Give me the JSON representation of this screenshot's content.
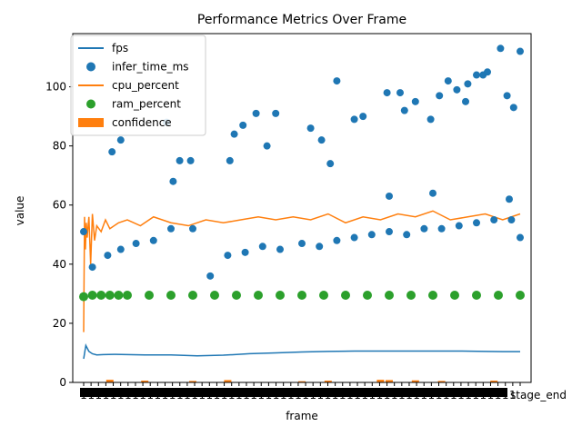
{
  "chart_data": {
    "type": "line",
    "title": "Performance Metrics Over Frame",
    "xlabel": "frame",
    "ylabel": "value",
    "ylim": [
      0,
      118
    ],
    "yticks": [
      0,
      20,
      40,
      60,
      80,
      100
    ],
    "x_range": [
      0,
      1000
    ],
    "x_tick_text": "1",
    "x_last_tick_label": "stage_end",
    "grid": false,
    "legend_position": "upper left",
    "colors": {
      "fps": "#1f77b4",
      "infer_time_ms": "#1f77b4",
      "cpu_percent": "#ff7f0e",
      "ram_percent": "#2ca02c",
      "confidence": "#ff7f0e"
    },
    "series": [
      {
        "name": "fps",
        "kind": "line",
        "x": [
          0,
          5,
          12,
          20,
          30,
          45,
          70,
          100,
          140,
          200,
          260,
          320,
          380,
          440,
          500,
          560,
          620,
          680,
          740,
          800,
          860,
          920,
          960,
          1000
        ],
        "y": [
          8.0,
          12.5,
          10.5,
          9.7,
          9.3,
          9.4,
          9.5,
          9.4,
          9.3,
          9.3,
          9.0,
          9.2,
          9.7,
          10.0,
          10.3,
          10.5,
          10.6,
          10.6,
          10.6,
          10.6,
          10.6,
          10.5,
          10.4,
          10.4
        ]
      },
      {
        "name": "infer_time_ms",
        "kind": "scatter",
        "x": [
          0,
          20,
          55,
          85,
          120,
          160,
          200,
          250,
          290,
          330,
          370,
          410,
          450,
          500,
          540,
          580,
          620,
          660,
          700,
          740,
          780,
          820,
          860,
          900,
          940,
          980,
          1000,
          65,
          85,
          190,
          205,
          220,
          245,
          335,
          345,
          365,
          395,
          420,
          440,
          520,
          545,
          565,
          580,
          620,
          640,
          695,
          725,
          735,
          760,
          795,
          815,
          835,
          855,
          875,
          880,
          900,
          915,
          925,
          955,
          970,
          985,
          1000,
          700,
          800,
          975
        ],
        "y": [
          51,
          39,
          43,
          45,
          47,
          48,
          52,
          52,
          36,
          43,
          44,
          46,
          45,
          47,
          46,
          48,
          49,
          50,
          51,
          50,
          52,
          52,
          53,
          54,
          55,
          55,
          49,
          78,
          82,
          88,
          68,
          75,
          75,
          75,
          84,
          87,
          91,
          80,
          91,
          86,
          82,
          74,
          102,
          89,
          90,
          98,
          98,
          92,
          95,
          89,
          97,
          102,
          99,
          95,
          101,
          104,
          104,
          105,
          113,
          97,
          93,
          112,
          63,
          64,
          62
        ]
      },
      {
        "name": "cpu_percent",
        "kind": "line",
        "x": [
          0,
          2,
          4,
          6,
          8,
          12,
          16,
          20,
          25,
          30,
          40,
          50,
          60,
          80,
          100,
          130,
          160,
          200,
          240,
          280,
          320,
          360,
          400,
          440,
          480,
          520,
          560,
          600,
          640,
          680,
          720,
          760,
          800,
          840,
          880,
          920,
          960,
          1000
        ],
        "y": [
          17,
          56,
          45,
          54,
          49,
          56,
          40,
          57,
          48,
          53,
          51,
          55,
          52,
          54,
          55,
          53,
          56,
          54,
          53,
          55,
          54,
          55,
          56,
          55,
          56,
          55,
          57,
          54,
          56,
          55,
          57,
          56,
          58,
          55,
          56,
          57,
          55,
          57
        ]
      },
      {
        "name": "ram_percent",
        "kind": "scatter",
        "x": [
          0,
          20,
          40,
          60,
          80,
          100,
          150,
          200,
          250,
          300,
          350,
          400,
          450,
          500,
          550,
          600,
          650,
          700,
          750,
          800,
          850,
          900,
          950,
          1000
        ],
        "y": [
          29,
          29.5,
          29.5,
          29.5,
          29.5,
          29.5,
          29.5,
          29.5,
          29.5,
          29.5,
          29.5,
          29.5,
          29.5,
          29.5,
          29.5,
          29.5,
          29.5,
          29.5,
          29.5,
          29.5,
          29.5,
          29.5,
          29.5,
          29.5
        ]
      },
      {
        "name": "confidence",
        "kind": "bar",
        "x": [
          60,
          140,
          250,
          330,
          500,
          560,
          680,
          700,
          760,
          820,
          940
        ],
        "y": [
          0.9,
          0.6,
          0.5,
          0.8,
          0.4,
          0.6,
          0.9,
          0.8,
          0.7,
          0.5,
          0.6
        ]
      }
    ]
  }
}
